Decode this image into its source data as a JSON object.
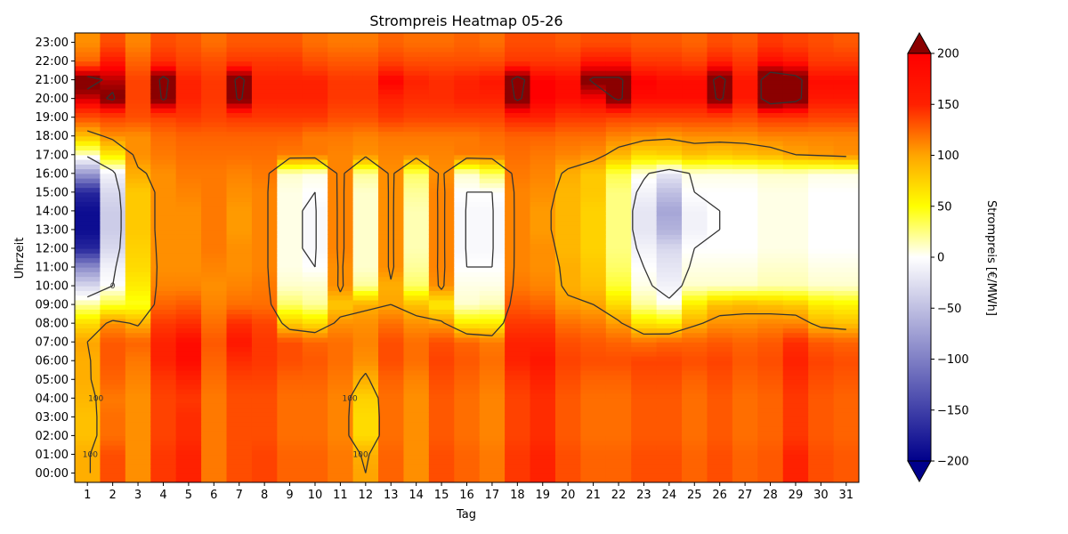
{
  "chart_data": {
    "type": "heatmap",
    "title": "Strompreis Heatmap 05-26",
    "xlabel": "Tag",
    "ylabel": "Uhrzeit",
    "x": [
      1,
      2,
      3,
      4,
      5,
      6,
      7,
      8,
      9,
      10,
      11,
      12,
      13,
      14,
      15,
      16,
      17,
      18,
      19,
      20,
      21,
      22,
      23,
      24,
      25,
      26,
      27,
      28,
      29,
      30,
      31
    ],
    "y_labels": [
      "00:00",
      "01:00",
      "02:00",
      "03:00",
      "04:00",
      "05:00",
      "06:00",
      "07:00",
      "08:00",
      "09:00",
      "10:00",
      "11:00",
      "12:00",
      "13:00",
      "14:00",
      "15:00",
      "16:00",
      "17:00",
      "18:00",
      "19:00",
      "20:00",
      "21:00",
      "22:00",
      "23:00"
    ],
    "colorbar": {
      "label": "Strompreis [€/MWh]",
      "range": [
        -200,
        200
      ],
      "ticks": [
        -200,
        -150,
        -100,
        -50,
        0,
        50,
        100,
        150,
        200
      ],
      "extend": "both",
      "colors": [
        "#00008b",
        "#ffffff",
        "#ffff00",
        "#ffa500",
        "#ff0000",
        "#8b0000"
      ]
    },
    "contour_levels": [
      0,
      100,
      200
    ],
    "contour_labels": [
      "0",
      "100",
      "200"
    ],
    "grid": false,
    "values_by_hour": [
      [
        95,
        140,
        110,
        150,
        160,
        120,
        140,
        145,
        130,
        130,
        120,
        100,
        130,
        110,
        140,
        130,
        120,
        150,
        160,
        140,
        130,
        130,
        140,
        140,
        130,
        140,
        130,
        135,
        160,
        140,
        135
      ],
      [
        95,
        140,
        110,
        150,
        160,
        120,
        140,
        145,
        130,
        130,
        120,
        95,
        130,
        110,
        140,
        130,
        120,
        150,
        160,
        140,
        130,
        130,
        140,
        140,
        130,
        140,
        130,
        135,
        160,
        140,
        135
      ],
      [
        85,
        125,
        110,
        145,
        155,
        120,
        140,
        140,
        125,
        125,
        115,
        70,
        125,
        110,
        135,
        125,
        115,
        145,
        155,
        135,
        125,
        125,
        135,
        135,
        125,
        135,
        125,
        130,
        150,
        135,
        130
      ],
      [
        85,
        125,
        110,
        145,
        155,
        120,
        140,
        140,
        125,
        125,
        115,
        70,
        125,
        110,
        135,
        125,
        115,
        145,
        155,
        135,
        125,
        125,
        135,
        135,
        125,
        135,
        125,
        130,
        150,
        135,
        130
      ],
      [
        90,
        120,
        110,
        145,
        150,
        120,
        140,
        140,
        125,
        125,
        115,
        75,
        125,
        110,
        135,
        125,
        115,
        145,
        155,
        135,
        125,
        125,
        135,
        135,
        125,
        135,
        125,
        130,
        150,
        135,
        130
      ],
      [
        95,
        130,
        115,
        150,
        160,
        125,
        145,
        145,
        130,
        130,
        120,
        95,
        130,
        115,
        140,
        130,
        120,
        150,
        160,
        140,
        130,
        130,
        140,
        140,
        130,
        140,
        130,
        135,
        155,
        140,
        135
      ],
      [
        95,
        135,
        120,
        160,
        170,
        130,
        155,
        150,
        140,
        135,
        125,
        110,
        140,
        125,
        145,
        135,
        125,
        160,
        165,
        145,
        140,
        140,
        145,
        145,
        140,
        145,
        135,
        140,
        160,
        145,
        140
      ],
      [
        100,
        135,
        130,
        160,
        170,
        135,
        165,
        150,
        140,
        130,
        125,
        115,
        140,
        125,
        140,
        130,
        120,
        160,
        160,
        140,
        135,
        130,
        125,
        130,
        130,
        135,
        130,
        135,
        155,
        135,
        130
      ],
      [
        70,
        110,
        95,
        150,
        155,
        125,
        155,
        145,
        80,
        70,
        110,
        110,
        125,
        110,
        105,
        60,
        60,
        150,
        150,
        125,
        120,
        105,
        65,
        60,
        95,
        110,
        110,
        115,
        115,
        90,
        85
      ],
      [
        20,
        40,
        45,
        130,
        135,
        115,
        125,
        125,
        30,
        20,
        80,
        95,
        100,
        85,
        60,
        10,
        15,
        135,
        130,
        105,
        100,
        70,
        20,
        5,
        60,
        85,
        90,
        85,
        80,
        60,
        55
      ],
      [
        -30,
        0,
        60,
        115,
        115,
        110,
        115,
        120,
        10,
        10,
        110,
        20,
        95,
        30,
        110,
        5,
        5,
        120,
        115,
        95,
        85,
        40,
        5,
        -10,
        10,
        10,
        10,
        15,
        15,
        10,
        10
      ],
      [
        -90,
        -10,
        70,
        110,
        110,
        115,
        110,
        115,
        5,
        0,
        110,
        10,
        110,
        20,
        115,
        0,
        0,
        115,
        110,
        95,
        80,
        30,
        0,
        -20,
        5,
        5,
        5,
        10,
        10,
        5,
        5
      ],
      [
        -170,
        -30,
        75,
        110,
        110,
        120,
        110,
        115,
        5,
        -5,
        115,
        10,
        110,
        15,
        115,
        -5,
        -5,
        115,
        110,
        90,
        75,
        25,
        -10,
        -30,
        0,
        0,
        0,
        5,
        5,
        0,
        0
      ],
      [
        -190,
        -40,
        80,
        110,
        110,
        120,
        105,
        115,
        5,
        -5,
        115,
        10,
        110,
        15,
        115,
        -5,
        -5,
        115,
        105,
        90,
        75,
        25,
        -20,
        -60,
        -10,
        0,
        0,
        5,
        5,
        0,
        0
      ],
      [
        -190,
        -40,
        80,
        110,
        110,
        120,
        105,
        115,
        5,
        -5,
        115,
        10,
        110,
        15,
        115,
        -5,
        -5,
        115,
        105,
        90,
        75,
        25,
        -20,
        -70,
        -10,
        0,
        0,
        5,
        5,
        0,
        0
      ],
      [
        -170,
        -30,
        80,
        110,
        115,
        120,
        110,
        115,
        5,
        0,
        115,
        10,
        110,
        20,
        115,
        0,
        0,
        115,
        110,
        90,
        80,
        25,
        -10,
        -50,
        0,
        0,
        0,
        5,
        5,
        0,
        0
      ],
      [
        -80,
        -10,
        95,
        110,
        120,
        120,
        115,
        120,
        10,
        5,
        115,
        20,
        110,
        30,
        110,
        10,
        30,
        120,
        115,
        95,
        80,
        35,
        5,
        -20,
        5,
        5,
        5,
        10,
        10,
        5,
        5
      ],
      [
        10,
        60,
        110,
        120,
        125,
        125,
        125,
        125,
        120,
        120,
        115,
        110,
        115,
        115,
        115,
        120,
        120,
        125,
        120,
        115,
        110,
        90,
        70,
        75,
        85,
        80,
        85,
        90,
        100,
        105,
        110
      ],
      [
        85,
        110,
        110,
        125,
        130,
        130,
        130,
        130,
        130,
        120,
        120,
        115,
        120,
        120,
        120,
        120,
        125,
        130,
        130,
        125,
        125,
        115,
        110,
        105,
        110,
        110,
        110,
        115,
        115,
        115,
        115
      ],
      [
        140,
        145,
        140,
        145,
        150,
        145,
        150,
        150,
        150,
        150,
        140,
        140,
        150,
        145,
        145,
        145,
        145,
        160,
        160,
        150,
        150,
        145,
        145,
        145,
        145,
        145,
        140,
        150,
        150,
        145,
        145
      ],
      [
        185,
        205,
        145,
        205,
        160,
        150,
        205,
        160,
        160,
        160,
        150,
        150,
        160,
        155,
        155,
        160,
        160,
        205,
        175,
        170,
        175,
        205,
        170,
        170,
        170,
        205,
        165,
        220,
        210,
        165,
        165
      ],
      [
        215,
        190,
        145,
        210,
        160,
        150,
        210,
        160,
        160,
        160,
        150,
        150,
        175,
        160,
        155,
        160,
        165,
        210,
        175,
        170,
        205,
        205,
        175,
        170,
        170,
        210,
        165,
        220,
        210,
        170,
        170
      ],
      [
        130,
        165,
        130,
        155,
        145,
        140,
        150,
        150,
        150,
        140,
        135,
        135,
        145,
        140,
        140,
        140,
        140,
        150,
        150,
        150,
        165,
        165,
        150,
        150,
        145,
        160,
        150,
        170,
        165,
        150,
        150
      ],
      [
        110,
        140,
        115,
        140,
        135,
        125,
        135,
        135,
        135,
        125,
        120,
        120,
        130,
        125,
        125,
        130,
        125,
        140,
        140,
        135,
        140,
        140,
        135,
        135,
        130,
        140,
        135,
        150,
        145,
        140,
        135
      ]
    ]
  }
}
